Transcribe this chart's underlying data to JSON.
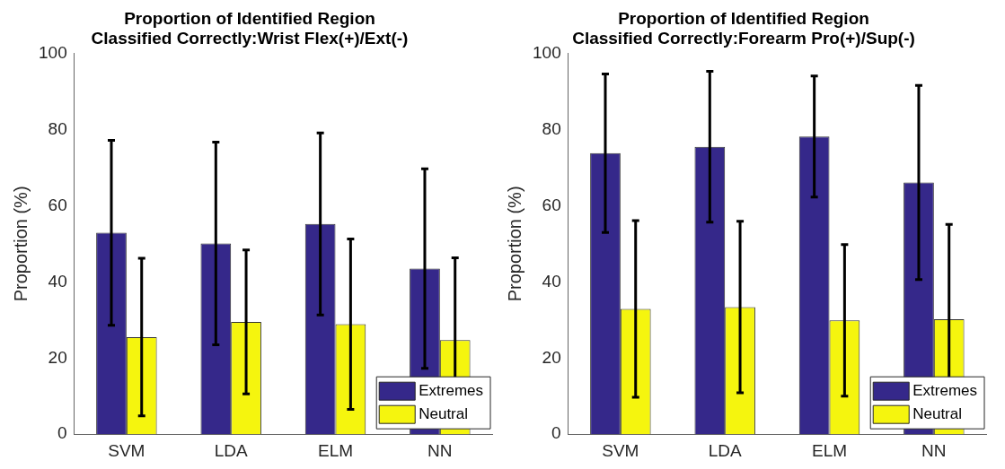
{
  "chart_data": [
    {
      "type": "bar",
      "title": "Proportion of Identified Region\nClassified Correctly:Wrist Flex(+)/Ext(-)",
      "ylabel": "Proportion (%)",
      "categories": [
        "SVM",
        "LDA",
        "ELM",
        "NN"
      ],
      "series": [
        {
          "name": "Extremes",
          "color": "#35288a",
          "values": [
            52.9,
            50.1,
            55.2,
            43.5
          ],
          "errors": [
            24.3,
            26.6,
            23.9,
            26.2
          ]
        },
        {
          "name": "Neutral",
          "color": "#f5f50e",
          "values": [
            25.5,
            29.5,
            28.9,
            24.7
          ],
          "errors": [
            20.7,
            18.9,
            22.4,
            21.6
          ]
        }
      ],
      "ylim": [
        0,
        100
      ],
      "yticks": [
        0,
        20,
        40,
        60,
        80,
        100
      ],
      "grid": false,
      "legend": "bottom right"
    },
    {
      "type": "bar",
      "title": "Proportion of Identified Region\nClassified Correctly:Forearm Pro(+)/Sup(-)",
      "ylabel": "Proportion (%)",
      "categories": [
        "SVM",
        "LDA",
        "ELM",
        "NN"
      ],
      "series": [
        {
          "name": "Extremes",
          "color": "#35288a",
          "values": [
            73.8,
            75.5,
            78.2,
            66.1
          ],
          "errors": [
            20.8,
            19.8,
            15.9,
            25.5
          ]
        },
        {
          "name": "Neutral",
          "color": "#f5f50e",
          "values": [
            32.9,
            33.4,
            29.9,
            30.2
          ],
          "errors": [
            23.2,
            22.5,
            19.9,
            24.9
          ]
        }
      ],
      "ylim": [
        0,
        100
      ],
      "yticks": [
        0,
        20,
        40,
        60,
        80,
        100
      ],
      "grid": false,
      "legend": "bottom right"
    }
  ]
}
